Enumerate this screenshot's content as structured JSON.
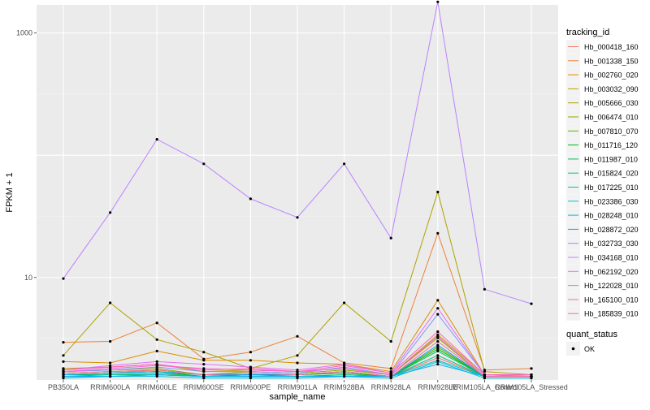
{
  "chart_data": {
    "type": "line",
    "xlabel": "sample_name",
    "ylabel": "FPKM + 1",
    "y_scale": "log10",
    "ylim": [
      1.45,
      1700
    ],
    "y_ticks": [
      {
        "value": 10,
        "label": "10"
      },
      {
        "value": 1000,
        "label": "1000"
      }
    ],
    "grid": true,
    "categories": [
      "PB350LA",
      "RRIM600LA",
      "RRIM600LE",
      "RRIM600SE",
      "RRIM600PE",
      "RRIM901LA",
      "RRIM928BA",
      "RRIM928LA",
      "RRIM928LE",
      "RRIM105LA_Control",
      "RRIM105LA_Stressed"
    ],
    "legend": {
      "title": "tracking_id",
      "position": "right",
      "quant_title": "quant_status",
      "quant_label": "OK"
    },
    "series": [
      {
        "name": "Hb_000418_160",
        "color": "#F8766D",
        "values": [
          1.6,
          1.65,
          1.75,
          1.6,
          1.65,
          1.6,
          1.7,
          1.55,
          2.2,
          1.55,
          1.55
        ]
      },
      {
        "name": "Hb_001338_150",
        "color": "#EC823C",
        "values": [
          2.95,
          3.0,
          4.25,
          2.15,
          2.45,
          3.3,
          2.0,
          1.8,
          23.0,
          1.75,
          1.8
        ]
      },
      {
        "name": "Hb_002760_020",
        "color": "#DB8E00",
        "values": [
          2.05,
          2.0,
          2.5,
          2.1,
          2.1,
          2.0,
          1.95,
          1.7,
          6.5,
          1.6,
          1.6
        ]
      },
      {
        "name": "Hb_003032_090",
        "color": "#C69A00",
        "values": [
          1.8,
          1.85,
          1.95,
          1.7,
          1.75,
          1.7,
          1.8,
          1.6,
          3.4,
          1.6,
          1.55
        ]
      },
      {
        "name": "Hb_005666_030",
        "color": "#AEA200",
        "values": [
          2.3,
          6.2,
          3.1,
          2.45,
          1.8,
          2.3,
          6.2,
          3.0,
          50.0,
          1.7,
          1.6
        ]
      },
      {
        "name": "Hb_006474_010",
        "color": "#8FAA00",
        "values": [
          1.7,
          1.75,
          1.8,
          1.6,
          1.7,
          1.65,
          1.75,
          1.6,
          3.2,
          1.55,
          1.55
        ]
      },
      {
        "name": "Hb_007810_070",
        "color": "#64B200",
        "values": [
          1.65,
          1.7,
          1.75,
          1.6,
          1.6,
          1.6,
          1.7,
          1.55,
          2.7,
          1.55,
          1.55
        ]
      },
      {
        "name": "Hb_011716_120",
        "color": "#00B81B",
        "values": [
          1.6,
          1.65,
          1.7,
          1.55,
          1.6,
          1.6,
          1.65,
          1.55,
          2.6,
          1.55,
          1.55
        ]
      },
      {
        "name": "Hb_011987_010",
        "color": "#00BD5C",
        "values": [
          1.6,
          1.6,
          1.65,
          1.55,
          1.6,
          1.55,
          1.6,
          1.55,
          2.5,
          1.55,
          1.55
        ]
      },
      {
        "name": "Hb_015824_020",
        "color": "#00C08E",
        "values": [
          1.55,
          1.6,
          1.6,
          1.55,
          1.55,
          1.55,
          1.6,
          1.55,
          2.3,
          1.55,
          1.55
        ]
      },
      {
        "name": "Hb_017225_010",
        "color": "#00C1B7",
        "values": [
          1.55,
          1.55,
          1.6,
          1.55,
          1.55,
          1.55,
          1.55,
          1.55,
          2.1,
          1.55,
          1.55
        ]
      },
      {
        "name": "Hb_023386_030",
        "color": "#00BDDC",
        "values": [
          1.5,
          1.55,
          1.55,
          1.5,
          1.5,
          1.5,
          1.55,
          1.5,
          2.05,
          1.5,
          1.5
        ]
      },
      {
        "name": "Hb_028248_010",
        "color": "#00B2F3",
        "values": [
          1.55,
          1.55,
          1.6,
          1.55,
          1.55,
          1.55,
          1.55,
          1.55,
          1.95,
          1.55,
          1.55
        ]
      },
      {
        "name": "Hb_028872_020",
        "color": "#00A5FF",
        "values": [
          1.6,
          1.65,
          1.7,
          1.6,
          1.6,
          1.6,
          1.7,
          1.55,
          2.8,
          1.55,
          1.55
        ]
      },
      {
        "name": "Hb_032733_030",
        "color": "#7F96FF",
        "values": [
          1.7,
          1.75,
          1.85,
          1.7,
          1.7,
          1.65,
          1.85,
          1.6,
          5.0,
          1.6,
          1.55
        ]
      },
      {
        "name": "Hb_034168_010",
        "color": "#BC81FF",
        "values": [
          9.8,
          34.0,
          135.0,
          85.0,
          44.0,
          31.0,
          85.0,
          21.0,
          1800.0,
          8.0,
          6.1
        ]
      },
      {
        "name": "Hb_062192_020",
        "color": "#E26EF7",
        "values": [
          1.75,
          1.9,
          2.05,
          1.95,
          1.85,
          1.75,
          1.95,
          1.65,
          5.6,
          1.6,
          1.6
        ]
      },
      {
        "name": "Hb_122028_010",
        "color": "#F863DF",
        "values": [
          1.7,
          1.8,
          1.9,
          1.8,
          1.75,
          1.7,
          1.8,
          1.6,
          3.3,
          1.55,
          1.55
        ]
      },
      {
        "name": "Hb_165100_010",
        "color": "#FF62BC",
        "values": [
          1.75,
          1.85,
          1.95,
          1.75,
          1.8,
          1.7,
          1.9,
          1.65,
          3.6,
          1.6,
          1.6
        ]
      },
      {
        "name": "Hb_185839_010",
        "color": "#FF6C91",
        "values": [
          1.65,
          1.7,
          1.75,
          1.6,
          1.65,
          1.6,
          1.7,
          1.55,
          3.0,
          1.55,
          1.55
        ]
      }
    ]
  }
}
